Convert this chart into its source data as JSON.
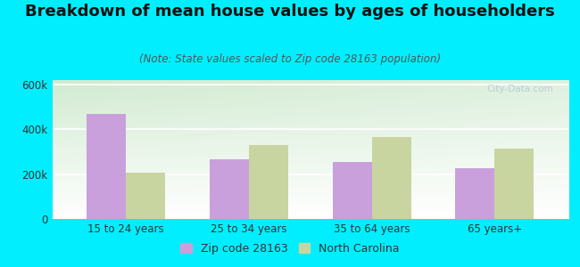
{
  "title": "Breakdown of mean house values by ages of householders",
  "subtitle": "(Note: State values scaled to Zip code 28163 population)",
  "categories": [
    "15 to 24 years",
    "25 to 34 years",
    "35 to 64 years",
    "65 years+"
  ],
  "zip_values": [
    470000,
    265000,
    255000,
    228000
  ],
  "nc_values": [
    205000,
    330000,
    365000,
    315000
  ],
  "zip_color": "#c9a0dc",
  "nc_color": "#c8d5a0",
  "background_outer": "#00eeff",
  "ylim": [
    0,
    620000
  ],
  "yticks": [
    0,
    200000,
    400000,
    600000
  ],
  "ytick_labels": [
    "0",
    "200k",
    "400k",
    "600k"
  ],
  "legend_zip_label": "Zip code 28163",
  "legend_nc_label": "North Carolina",
  "bar_width": 0.32,
  "title_fontsize": 13,
  "subtitle_fontsize": 8.5,
  "tick_fontsize": 8.5,
  "legend_fontsize": 9,
  "watermark": "City-Data.com"
}
